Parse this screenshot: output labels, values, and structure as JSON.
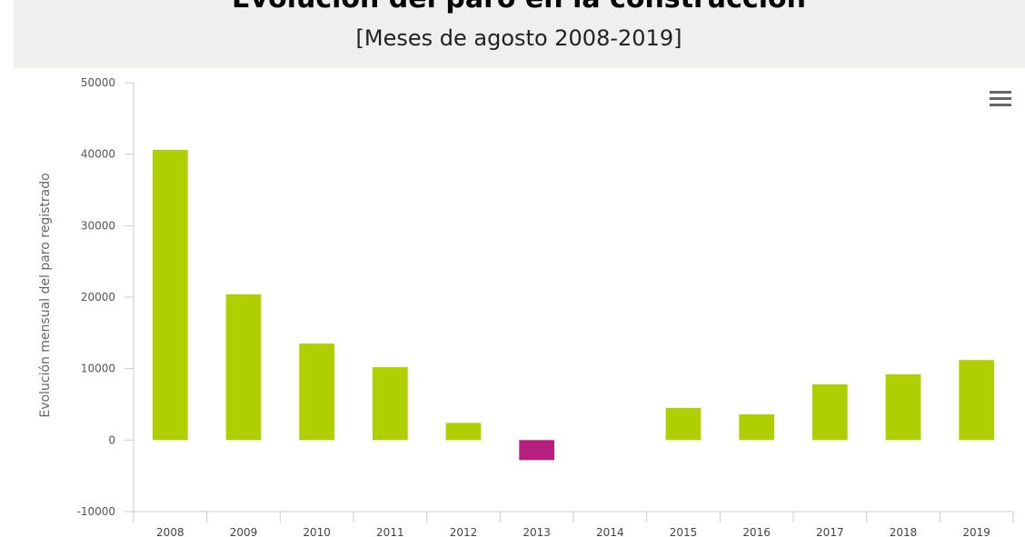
{
  "chart_data": {
    "type": "bar",
    "title": "Evolución del paro en la construcción",
    "subtitle": "[Meses de agosto 2008-2019]",
    "y_label": "Evolución mensual del paro registrado",
    "categories": [
      "2008",
      "2009",
      "2010",
      "2011",
      "2012",
      "2013",
      "2014",
      "2015",
      "2016",
      "2017",
      "2018",
      "2019"
    ],
    "values": [
      40600,
      20400,
      13500,
      10200,
      2400,
      -2800,
      0,
      4500,
      3600,
      7800,
      9200,
      11200
    ],
    "color": "#b0cf00",
    "negative_color": "#b5207f",
    "ylim": [
      -10000,
      50000
    ],
    "yticks": [
      -10000,
      0,
      10000,
      20000,
      30000,
      40000,
      50000
    ],
    "grid": false
  }
}
